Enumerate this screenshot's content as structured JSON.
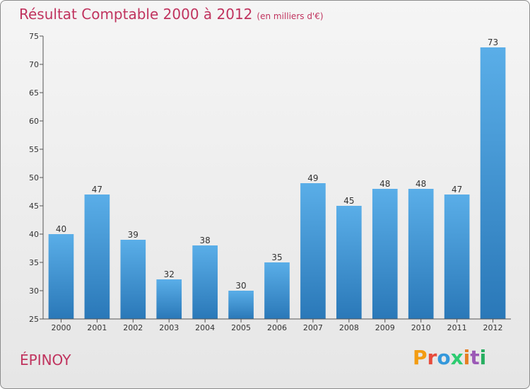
{
  "title": "Résultat Comptable 2000 à 2012",
  "subtitle": "(en milliers d'€)",
  "location": "ÉPINOY",
  "brand": {
    "letters": [
      "P",
      "r",
      "o",
      "x",
      "i",
      "t",
      "i"
    ],
    "colors": [
      "#f39c12",
      "#e74c3c",
      "#3498db",
      "#2ecc71",
      "#e67e22",
      "#9b59b6",
      "#27ae60"
    ]
  },
  "colors": {
    "bar_top": "#5aaee8",
    "bar_bottom": "#2a78b8",
    "title": "#c0335e"
  },
  "chart_data": {
    "type": "bar",
    "title": "Résultat Comptable 2000 à 2012",
    "subtitle": "(en milliers d'€)",
    "categories": [
      "2000",
      "2001",
      "2002",
      "2003",
      "2004",
      "2005",
      "2006",
      "2007",
      "2008",
      "2009",
      "2010",
      "2011",
      "2012"
    ],
    "values": [
      40,
      47,
      39,
      32,
      38,
      30,
      35,
      49,
      45,
      48,
      48,
      47,
      73
    ],
    "ylim": [
      25,
      75
    ],
    "yticks": [
      25,
      30,
      35,
      40,
      45,
      50,
      55,
      60,
      65,
      70,
      75
    ],
    "grid": false,
    "data_labels": true
  }
}
